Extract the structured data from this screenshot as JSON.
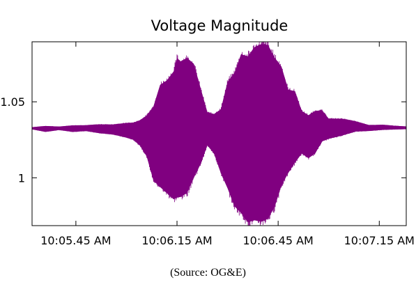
{
  "chart_data": {
    "type": "area",
    "title": "Voltage Magnitude",
    "xlabel": "",
    "ylabel": "",
    "x_tick_labels": [
      "10:05.45 AM",
      "10:06.15 AM",
      "10:06.45 AM",
      "10:07.15 AM"
    ],
    "x_tick_seconds": [
      345,
      375,
      405,
      435
    ],
    "xlim_seconds": [
      332,
      443
    ],
    "ylim": [
      0.9685,
      1.0895
    ],
    "y_tick_values": [
      1,
      1.05
    ],
    "y_tick_labels": [
      "1",
      "1.05"
    ],
    "grid": false,
    "legend": "none",
    "series": [
      {
        "color": "#800080",
        "x": [
          332,
          336,
          340,
          344,
          348,
          352,
          356,
          360,
          362,
          364,
          366,
          368,
          370,
          372,
          374,
          375,
          376,
          378,
          380,
          382,
          384,
          386,
          388,
          390,
          392,
          394,
          396,
          398,
          400,
          402,
          404,
          406,
          408,
          410,
          412,
          414,
          416,
          418,
          420,
          424,
          428,
          432,
          436,
          440,
          443
        ],
        "upper": [
          1.0333,
          1.0341,
          1.0337,
          1.0345,
          1.0346,
          1.0352,
          1.0351,
          1.0361,
          1.0363,
          1.0379,
          1.041,
          1.047,
          1.0612,
          1.0641,
          1.07,
          1.079,
          1.0766,
          1.0789,
          1.075,
          1.059,
          1.0431,
          1.042,
          1.0451,
          1.0632,
          1.069,
          1.0813,
          1.08,
          1.086,
          1.088,
          1.0874,
          1.079,
          1.0731,
          1.058,
          1.057,
          1.044,
          1.0412,
          1.044,
          1.0445,
          1.039,
          1.0389,
          1.0372,
          1.0347,
          1.0349,
          1.0342,
          1.0338
        ],
        "lower": [
          1.0319,
          1.0302,
          1.0314,
          1.0302,
          1.0307,
          1.0293,
          1.0285,
          1.0264,
          1.025,
          1.0212,
          1.014,
          0.9981,
          0.9939,
          0.9898,
          0.9858,
          0.987,
          0.9873,
          0.99,
          1.0,
          1.009,
          1.0212,
          1.016,
          1.003,
          0.993,
          0.9813,
          0.9769,
          0.9707,
          0.972,
          0.971,
          0.973,
          0.9809,
          0.995,
          1.0031,
          1.01,
          1.0159,
          1.0128,
          1.016,
          1.0239,
          1.0256,
          1.0278,
          1.0304,
          1.0308,
          1.0315,
          1.0318,
          1.032
        ]
      }
    ]
  },
  "caption": "(Source:  OG&E)"
}
